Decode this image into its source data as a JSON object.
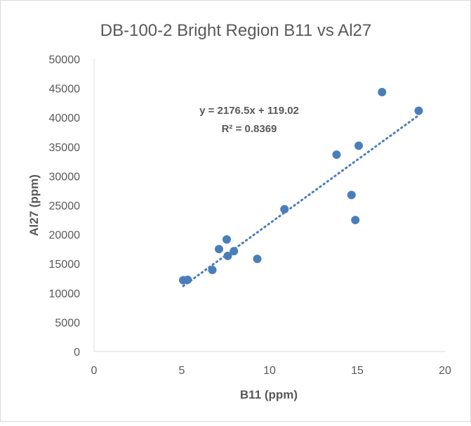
{
  "chart_data": {
    "type": "scatter",
    "title": "DB-100-2 Bright Region B11 vs Al27",
    "xlabel": "B11 (ppm)",
    "ylabel": "Al27 (ppm)",
    "xlim": [
      0,
      20
    ],
    "ylim": [
      0,
      50000
    ],
    "xticks": [
      0,
      5,
      10,
      15,
      20
    ],
    "yticks": [
      0,
      5000,
      10000,
      15000,
      20000,
      25000,
      30000,
      35000,
      40000,
      45000,
      50000
    ],
    "grid": false,
    "legend": "none",
    "marker_color": "#4a7ebb",
    "points": [
      {
        "x": 5.08,
        "y": 12180
      },
      {
        "x": 5.33,
        "y": 12260
      },
      {
        "x": 6.74,
        "y": 13940
      },
      {
        "x": 7.12,
        "y": 17510
      },
      {
        "x": 7.56,
        "y": 19150
      },
      {
        "x": 7.62,
        "y": 16350
      },
      {
        "x": 7.97,
        "y": 17150
      },
      {
        "x": 9.3,
        "y": 15830
      },
      {
        "x": 10.85,
        "y": 24320
      },
      {
        "x": 13.82,
        "y": 33650
      },
      {
        "x": 14.67,
        "y": 26760
      },
      {
        "x": 14.89,
        "y": 22480
      },
      {
        "x": 15.08,
        "y": 35180
      },
      {
        "x": 16.41,
        "y": 44350
      },
      {
        "x": 18.5,
        "y": 41150
      }
    ],
    "trendline": {
      "type": "linear",
      "slope": 2176.5,
      "intercept": 119.02,
      "x_range": [
        5.08,
        18.5
      ],
      "style": "dotted",
      "equation_label": "y = 2176.5x + 119.02",
      "r2_label": "R² = 0.8369"
    }
  }
}
